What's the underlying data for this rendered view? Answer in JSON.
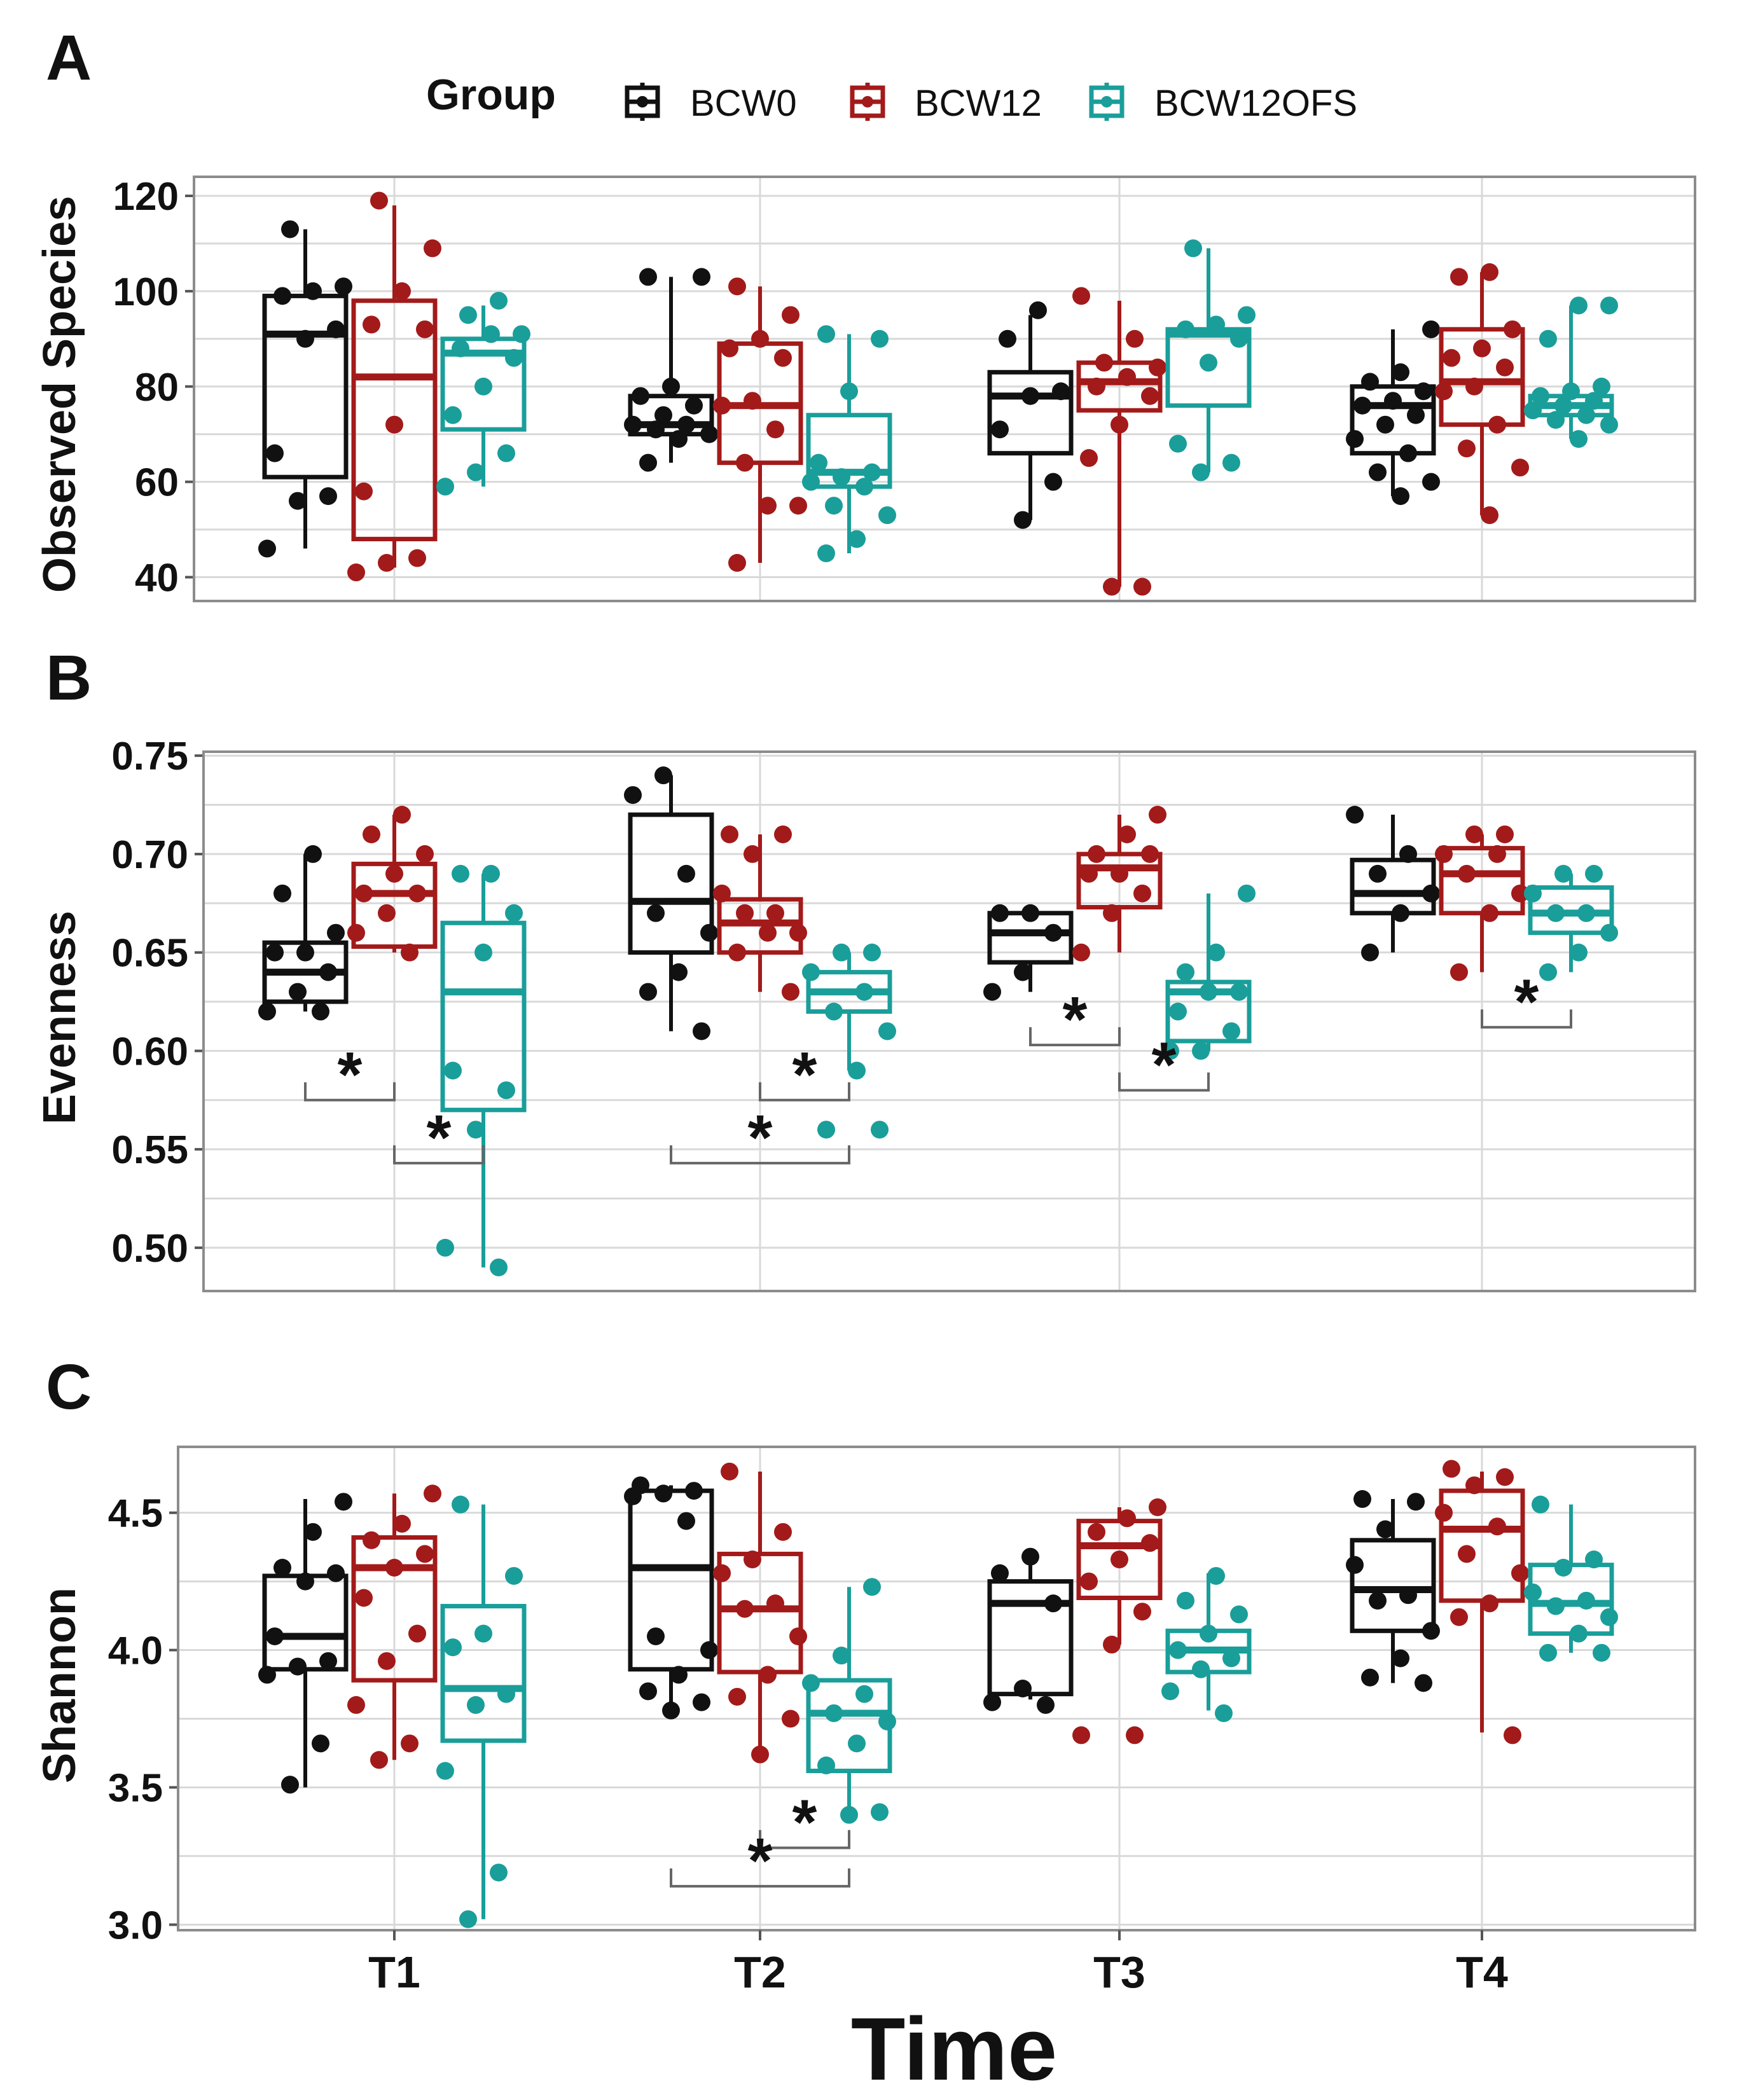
{
  "colors": {
    "BCW0": "#111111",
    "BCW12": "#A31A1A",
    "BCW12OFS": "#1A9E9A",
    "grid": "#D9D9D9",
    "frame": "#8C8C8C"
  },
  "legend": {
    "title": "Group",
    "items": [
      "BCW0",
      "BCW12",
      "BCW12OFS"
    ]
  },
  "xaxis": {
    "title": "Time",
    "ticks": [
      "T1",
      "T2",
      "T3",
      "T4"
    ]
  },
  "panels": [
    {
      "letter": "A",
      "ylabel": "Observed Species",
      "ylim": [
        35,
        124
      ],
      "yticks": [
        "40",
        "60",
        "80",
        "100",
        "120"
      ],
      "ytick_values": [
        40,
        60,
        80,
        100,
        120
      ]
    },
    {
      "letter": "B",
      "ylabel": "Evenness",
      "ylim": [
        0.478,
        0.752
      ],
      "yticks": [
        "0.50",
        "0.55",
        "0.60",
        "0.65",
        "0.70",
        "0.75"
      ],
      "ytick_values": [
        0.5,
        0.55,
        0.6,
        0.65,
        0.7,
        0.75
      ]
    },
    {
      "letter": "C",
      "ylabel": "Shannon",
      "ylim": [
        2.98,
        4.74
      ],
      "yticks": [
        "3.0",
        "3.5",
        "4.0",
        "4.5"
      ],
      "ytick_values": [
        3.0,
        3.5,
        4.0,
        4.5
      ]
    }
  ],
  "chart_data": [
    {
      "type": "boxplot",
      "panel": "A",
      "ylabel": "Observed Species",
      "categories": [
        "T1",
        "T2",
        "T3",
        "T4"
      ],
      "series": [
        {
          "name": "BCW0",
          "boxes": [
            {
              "lo": 46,
              "q1": 61,
              "med": 91,
              "q3": 99,
              "hi": 113
            },
            {
              "lo": 64,
              "q1": 70,
              "med": 72,
              "q3": 78,
              "hi": 103
            },
            {
              "lo": 52,
              "q1": 66,
              "med": 78,
              "q3": 83,
              "hi": 95
            },
            {
              "lo": 57,
              "q1": 66,
              "med": 76,
              "q3": 80,
              "hi": 92
            }
          ],
          "points": [
            [
              46,
              56,
              57,
              66,
              90,
              92,
              99,
              100,
              101,
              113
            ],
            [
              64,
              69,
              70,
              71,
              72,
              72,
              74,
              76,
              78,
              80,
              103,
              103
            ],
            [
              52,
              60,
              71,
              78,
              79,
              90,
              96
            ],
            [
              57,
              60,
              62,
              66,
              69,
              72,
              74,
              76,
              77,
              79,
              81,
              83,
              92
            ]
          ]
        },
        {
          "name": "BCW12",
          "boxes": [
            {
              "lo": 42,
              "q1": 48,
              "med": 82,
              "q3": 98,
              "hi": 118
            },
            {
              "lo": 43,
              "q1": 64,
              "med": 76,
              "q3": 89,
              "hi": 101
            },
            {
              "lo": 38,
              "q1": 75,
              "med": 81,
              "q3": 85,
              "hi": 98
            },
            {
              "lo": 53,
              "q1": 72,
              "med": 81,
              "q3": 92,
              "hi": 104
            }
          ],
          "points": [
            [
              41,
              43,
              44,
              58,
              72,
              92,
              93,
              100,
              109,
              119
            ],
            [
              43,
              55,
              55,
              64,
              71,
              76,
              77,
              86,
              88,
              90,
              95,
              101
            ],
            [
              38,
              38,
              65,
              72,
              78,
              80,
              82,
              84,
              85,
              90,
              99
            ],
            [
              53,
              63,
              67,
              72,
              79,
              80,
              84,
              86,
              88,
              92,
              103,
              104
            ]
          ]
        },
        {
          "name": "BCW12OFS",
          "boxes": [
            {
              "lo": 59,
              "q1": 71,
              "med": 87,
              "q3": 90,
              "hi": 97
            },
            {
              "lo": 45,
              "q1": 59,
              "med": 62,
              "q3": 74,
              "hi": 91
            },
            {
              "lo": 62,
              "q1": 76,
              "med": 91,
              "q3": 92,
              "hi": 109
            },
            {
              "lo": 69,
              "q1": 74,
              "med": 76,
              "q3": 78,
              "hi": 97
            }
          ],
          "points": [
            [
              59,
              62,
              66,
              74,
              80,
              86,
              88,
              91,
              91,
              95,
              98
            ],
            [
              45,
              48,
              53,
              55,
              59,
              60,
              61,
              62,
              64,
              79,
              90,
              91
            ],
            [
              62,
              64,
              68,
              85,
              90,
              92,
              93,
              95,
              109
            ],
            [
              69,
              72,
              73,
              74,
              75,
              76,
              77,
              78,
              79,
              80,
              90,
              97,
              97
            ]
          ]
        }
      ],
      "significance": []
    },
    {
      "type": "boxplot",
      "panel": "B",
      "ylabel": "Evenness",
      "categories": [
        "T1",
        "T2",
        "T3",
        "T4"
      ],
      "series": [
        {
          "name": "BCW0",
          "boxes": [
            {
              "lo": 0.62,
              "q1": 0.625,
              "med": 0.64,
              "q3": 0.655,
              "hi": 0.7
            },
            {
              "lo": 0.61,
              "q1": 0.65,
              "med": 0.676,
              "q3": 0.72,
              "hi": 0.74
            },
            {
              "lo": 0.63,
              "q1": 0.645,
              "med": 0.66,
              "q3": 0.67,
              "hi": 0.67
            },
            {
              "lo": 0.65,
              "q1": 0.67,
              "med": 0.68,
              "q3": 0.697,
              "hi": 0.72
            }
          ],
          "points": [
            [
              0.62,
              0.62,
              0.63,
              0.64,
              0.65,
              0.65,
              0.66,
              0.68,
              0.7
            ],
            [
              0.61,
              0.63,
              0.64,
              0.66,
              0.67,
              0.69,
              0.73,
              0.74
            ],
            [
              0.63,
              0.64,
              0.66,
              0.67,
              0.67
            ],
            [
              0.65,
              0.67,
              0.68,
              0.69,
              0.7,
              0.72
            ]
          ]
        },
        {
          "name": "BCW12",
          "boxes": [
            {
              "lo": 0.65,
              "q1": 0.653,
              "med": 0.68,
              "q3": 0.695,
              "hi": 0.72
            },
            {
              "lo": 0.63,
              "q1": 0.65,
              "med": 0.665,
              "q3": 0.677,
              "hi": 0.71
            },
            {
              "lo": 0.65,
              "q1": 0.673,
              "med": 0.693,
              "q3": 0.7,
              "hi": 0.72
            },
            {
              "lo": 0.64,
              "q1": 0.67,
              "med": 0.69,
              "q3": 0.703,
              "hi": 0.71
            }
          ],
          "points": [
            [
              0.65,
              0.66,
              0.67,
              0.68,
              0.68,
              0.69,
              0.7,
              0.71,
              0.72
            ],
            [
              0.63,
              0.65,
              0.66,
              0.66,
              0.67,
              0.67,
              0.68,
              0.7,
              0.71,
              0.71
            ],
            [
              0.65,
              0.67,
              0.68,
              0.69,
              0.69,
              0.7,
              0.7,
              0.71,
              0.72
            ],
            [
              0.64,
              0.67,
              0.68,
              0.69,
              0.7,
              0.7,
              0.71,
              0.71
            ]
          ]
        },
        {
          "name": "BCW12OFS",
          "boxes": [
            {
              "lo": 0.49,
              "q1": 0.57,
              "med": 0.63,
              "q3": 0.665,
              "hi": 0.69
            },
            {
              "lo": 0.59,
              "q1": 0.62,
              "med": 0.63,
              "q3": 0.64,
              "hi": 0.65
            },
            {
              "lo": 0.6,
              "q1": 0.605,
              "med": 0.63,
              "q3": 0.635,
              "hi": 0.68
            },
            {
              "lo": 0.64,
              "q1": 0.66,
              "med": 0.67,
              "q3": 0.683,
              "hi": 0.69
            }
          ],
          "points": [
            [
              0.49,
              0.5,
              0.56,
              0.58,
              0.59,
              0.65,
              0.67,
              0.69,
              0.69
            ],
            [
              0.56,
              0.56,
              0.59,
              0.61,
              0.62,
              0.63,
              0.64,
              0.65,
              0.65
            ],
            [
              0.6,
              0.6,
              0.61,
              0.62,
              0.63,
              0.63,
              0.64,
              0.65,
              0.68
            ],
            [
              0.64,
              0.65,
              0.66,
              0.67,
              0.67,
              0.68,
              0.69,
              0.69
            ]
          ]
        }
      ],
      "significance": [
        {
          "time": "T1",
          "from": "BCW0",
          "to": "BCW12",
          "y": 0.575,
          "label": "*"
        },
        {
          "time": "T1",
          "from": "BCW12",
          "to": "BCW12OFS",
          "y": 0.543,
          "label": "*"
        },
        {
          "time": "T2",
          "from": "BCW12",
          "to": "BCW12OFS",
          "y": 0.575,
          "label": "*"
        },
        {
          "time": "T2",
          "from": "BCW0",
          "to": "BCW12OFS",
          "y": 0.543,
          "label": "*"
        },
        {
          "time": "T3",
          "from": "BCW0",
          "to": "BCW12",
          "y": 0.603,
          "label": "*"
        },
        {
          "time": "T3",
          "from": "BCW12",
          "to": "BCW12OFS",
          "y": 0.58,
          "label": "*"
        },
        {
          "time": "T4",
          "from": "BCW12",
          "to": "BCW12OFS",
          "y": 0.612,
          "label": "*"
        }
      ]
    },
    {
      "type": "boxplot",
      "panel": "C",
      "ylabel": "Shannon",
      "categories": [
        "T1",
        "T2",
        "T3",
        "T4"
      ],
      "series": [
        {
          "name": "BCW0",
          "boxes": [
            {
              "lo": 3.5,
              "q1": 3.93,
              "med": 4.05,
              "q3": 4.27,
              "hi": 4.55
            },
            {
              "lo": 3.8,
              "q1": 3.93,
              "med": 4.3,
              "q3": 4.58,
              "hi": 4.6
            },
            {
              "lo": 3.82,
              "q1": 3.84,
              "med": 4.17,
              "q3": 4.25,
              "hi": 4.33
            },
            {
              "lo": 3.88,
              "q1": 4.07,
              "med": 4.22,
              "q3": 4.4,
              "hi": 4.55
            }
          ],
          "points": [
            [
              3.51,
              3.66,
              3.91,
              3.94,
              3.96,
              4.05,
              4.25,
              4.28,
              4.3,
              4.43,
              4.54
            ],
            [
              3.78,
              3.81,
              3.85,
              3.91,
              4.0,
              4.05,
              4.47,
              4.56,
              4.57,
              4.58,
              4.6
            ],
            [
              3.8,
              3.81,
              3.86,
              4.17,
              4.28,
              4.34
            ],
            [
              3.88,
              3.9,
              3.97,
              4.07,
              4.18,
              4.2,
              4.31,
              4.44,
              4.54,
              4.55
            ]
          ]
        },
        {
          "name": "BCW12",
          "boxes": [
            {
              "lo": 3.6,
              "q1": 3.89,
              "med": 4.3,
              "q3": 4.41,
              "hi": 4.57
            },
            {
              "lo": 3.62,
              "q1": 3.92,
              "med": 4.15,
              "q3": 4.35,
              "hi": 4.65
            },
            {
              "lo": 4.02,
              "q1": 4.19,
              "med": 4.38,
              "q3": 4.47,
              "hi": 4.52
            },
            {
              "lo": 3.7,
              "q1": 4.18,
              "med": 4.44,
              "q3": 4.58,
              "hi": 4.65
            }
          ],
          "points": [
            [
              3.6,
              3.66,
              3.8,
              3.96,
              4.06,
              4.19,
              4.3,
              4.35,
              4.4,
              4.46,
              4.57
            ],
            [
              3.62,
              3.75,
              3.83,
              3.91,
              4.05,
              4.15,
              4.17,
              4.28,
              4.33,
              4.43,
              4.65
            ],
            [
              3.69,
              3.69,
              4.02,
              4.14,
              4.25,
              4.33,
              4.39,
              4.43,
              4.48,
              4.52
            ],
            [
              3.69,
              4.12,
              4.17,
              4.28,
              4.35,
              4.45,
              4.5,
              4.6,
              4.63,
              4.66
            ]
          ]
        },
        {
          "name": "BCW12OFS",
          "boxes": [
            {
              "lo": 3.02,
              "q1": 3.67,
              "med": 3.86,
              "q3": 4.16,
              "hi": 4.53
            },
            {
              "lo": 3.4,
              "q1": 3.56,
              "med": 3.77,
              "q3": 3.89,
              "hi": 4.23
            },
            {
              "lo": 3.78,
              "q1": 3.92,
              "med": 4.0,
              "q3": 4.07,
              "hi": 4.28
            },
            {
              "lo": 3.99,
              "q1": 4.06,
              "med": 4.17,
              "q3": 4.31,
              "hi": 4.53
            }
          ],
          "points": [
            [
              3.02,
              3.19,
              3.56,
              3.8,
              3.84,
              4.01,
              4.06,
              4.27,
              4.53
            ],
            [
              3.4,
              3.41,
              3.58,
              3.66,
              3.74,
              3.77,
              3.84,
              3.88,
              3.98,
              4.23
            ],
            [
              3.77,
              3.85,
              3.93,
              3.97,
              4.0,
              4.06,
              4.13,
              4.18,
              4.27
            ],
            [
              3.99,
              3.99,
              4.06,
              4.12,
              4.16,
              4.18,
              4.21,
              4.3,
              4.33,
              4.53
            ]
          ]
        }
      ],
      "significance": [
        {
          "time": "T2",
          "from": "BCW12",
          "to": "BCW12OFS",
          "y": 3.28,
          "label": "*"
        },
        {
          "time": "T2",
          "from": "BCW0",
          "to": "BCW12OFS",
          "y": 3.14,
          "label": "*"
        }
      ]
    }
  ]
}
